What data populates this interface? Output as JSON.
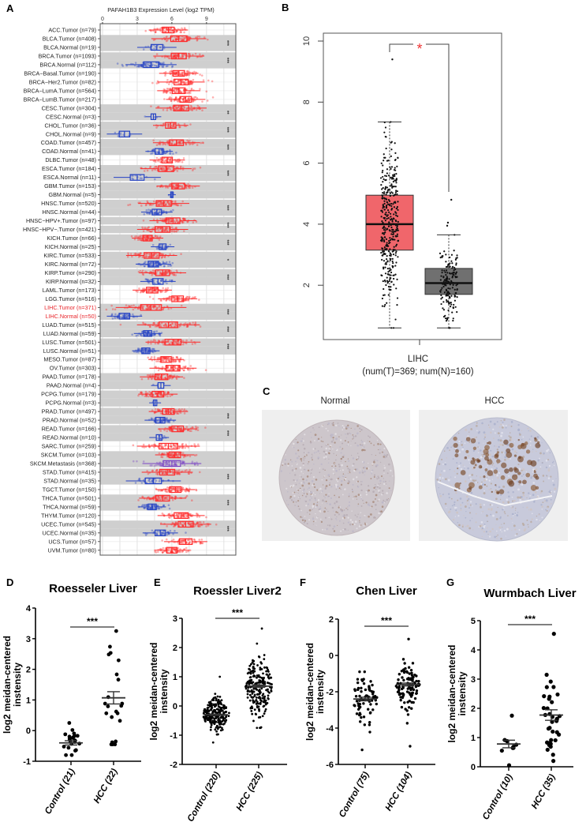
{
  "panel_letters": [
    "A",
    "B",
    "C",
    "D",
    "E",
    "F",
    "G"
  ],
  "panel_c": {
    "labels": [
      "Normal",
      "HCC"
    ]
  },
  "chart_data": [
    {
      "type": "box",
      "title": "PAFAH1B3 Expression Level (log2 TPM)",
      "x_ticks": [
        "0",
        "3",
        "6",
        "9"
      ],
      "xlim": [
        -0.2,
        11.6
      ],
      "colors": {
        "tumor": "#ff2a2a",
        "normal": "#2442c4",
        "metastasis": "#7b45c4",
        "highlight": "#e8242a",
        "band": "#cfcfcf"
      },
      "rows": [
        {
          "label": "ACC.Tumor (n=79)",
          "median": 5.7,
          "iqr": 1.0
        },
        {
          "label": "BLCA.Tumor (n=408)",
          "median": 6.6,
          "iqr": 1.4,
          "shaded": true,
          "sig": "***"
        },
        {
          "label": "BLCA.Normal (n=19)",
          "median": 4.7,
          "iqr": 1.0,
          "type": "normal",
          "shaded": true
        },
        {
          "label": "BRCA.Tumor (n=1093)",
          "median": 6.6,
          "iqr": 1.3,
          "shaded": true,
          "sig": "***"
        },
        {
          "label": "BRCA.Normal (n=112)",
          "median": 4.2,
          "iqr": 1.3,
          "type": "normal",
          "shaded": true
        },
        {
          "label": "BRCA−Basal.Tumor (n=190)",
          "median": 6.6,
          "iqr": 1.0
        },
        {
          "label": "BRCA−Her2.Tumor (n=82)",
          "median": 6.8,
          "iqr": 1.2
        },
        {
          "label": "BRCA−LumA.Tumor (n=564)",
          "median": 6.6,
          "iqr": 1.1
        },
        {
          "label": "BRCA−LumB.Tumor (n=217)",
          "median": 7.2,
          "iqr": 1.0
        },
        {
          "label": "CESC.Tumor (n=304)",
          "median": 6.8,
          "iqr": 1.3,
          "shaded": true,
          "sig": "**"
        },
        {
          "label": "CESC.Normal (n=3)",
          "median": 4.4,
          "iqr": 0.4,
          "type": "normal",
          "shaded": true
        },
        {
          "label": "CHOL.Tumor (n=36)",
          "median": 5.9,
          "iqr": 0.9,
          "shaded": true,
          "sig": "***"
        },
        {
          "label": "CHOL.Normal (n=9)",
          "median": 1.9,
          "iqr": 0.9,
          "type": "normal",
          "shaded": true
        },
        {
          "label": "COAD.Tumor (n=457)",
          "median": 6.4,
          "iqr": 1.2,
          "shaded": true,
          "sig": "***"
        },
        {
          "label": "COAD.Normal (n=41)",
          "median": 4.9,
          "iqr": 0.7,
          "type": "normal",
          "shaded": true
        },
        {
          "label": "DLBC.Tumor (n=48)",
          "median": 5.6,
          "iqr": 0.9
        },
        {
          "label": "ESCA.Tumor (n=184)",
          "median": 5.5,
          "iqr": 1.3,
          "shaded": true,
          "sig": "***"
        },
        {
          "label": "ESCA.Normal (n=11)",
          "median": 3.0,
          "iqr": 1.2,
          "type": "normal",
          "shaded": true
        },
        {
          "label": "GBM.Tumor (n=153)",
          "median": 6.55,
          "iqr": 1.1,
          "shaded": true
        },
        {
          "label": "GBM.Normal (n=5)",
          "median": 6.0,
          "iqr": 0.2,
          "type": "normal",
          "shaded": true
        },
        {
          "label": "HNSC.Tumor (n=520)",
          "median": 5.3,
          "iqr": 1.3,
          "shaded": true,
          "sig": "***"
        },
        {
          "label": "HNSC.Normal (n=44)",
          "median": 4.7,
          "iqr": 0.8,
          "type": "normal",
          "shaded": true
        },
        {
          "label": "HNSC−HPV+.Tumor (n=97)",
          "median": 6.1,
          "iqr": 1.2,
          "shaded": true,
          "sig": "***"
        },
        {
          "label": "HNSC−HPV−.Tumor (n=421)",
          "median": 5.2,
          "iqr": 1.3,
          "shaded": true
        },
        {
          "label": "KICH.Tumor (n=66)",
          "median": 3.9,
          "iqr": 0.8,
          "shaded": true,
          "sig": "***"
        },
        {
          "label": "KICH.Normal (n=25)",
          "median": 5.2,
          "iqr": 0.6,
          "type": "normal",
          "shaded": true
        },
        {
          "label": "KIRC.Tumor (n=533)",
          "median": 4.25,
          "iqr": 1.3,
          "shaded": true,
          "sig": "*"
        },
        {
          "label": "KIRC.Normal (n=72)",
          "median": 4.4,
          "iqr": 0.9,
          "type": "normal",
          "shaded": true
        },
        {
          "label": "KIRP.Tumor (n=290)",
          "median": 5.2,
          "iqr": 1.2,
          "shaded": true,
          "sig": "***"
        },
        {
          "label": "KIRP.Normal (n=32)",
          "median": 4.8,
          "iqr": 0.9,
          "type": "normal",
          "shaded": true
        },
        {
          "label": "LAML.Tumor (n=173)",
          "median": 4.3,
          "iqr": 1.0
        },
        {
          "label": "LGG.Tumor (n=516)",
          "median": 6.5,
          "iqr": 1.0
        },
        {
          "label": "LIHC.Tumor (n=371)",
          "median": 4.2,
          "iqr": 1.8,
          "shaded": true,
          "sig": "***",
          "highlight": true
        },
        {
          "label": "LIHC.Normal (n=50)",
          "median": 1.9,
          "iqr": 0.9,
          "type": "normal",
          "shaded": true,
          "highlight": true
        },
        {
          "label": "LUAD.Tumor (n=515)",
          "median": 5.7,
          "iqr": 1.6,
          "shaded": true,
          "sig": "***"
        },
        {
          "label": "LUAD.Normal (n=59)",
          "median": 3.9,
          "iqr": 0.7,
          "type": "normal",
          "shaded": true
        },
        {
          "label": "LUSC.Tumor (n=501)",
          "median": 6.1,
          "iqr": 1.4,
          "shaded": true,
          "sig": "***"
        },
        {
          "label": "LUSC.Normal (n=51)",
          "median": 3.75,
          "iqr": 0.7,
          "type": "normal",
          "shaded": true
        },
        {
          "label": "MESO.Tumor (n=87)",
          "median": 5.5,
          "iqr": 0.9
        },
        {
          "label": "OV.Tumor (n=303)",
          "median": 6.1,
          "iqr": 1.2
        },
        {
          "label": "PAAD.Tumor (n=178)",
          "median": 5.1,
          "iqr": 1.1,
          "shaded": true
        },
        {
          "label": "PAAD.Normal (n=4)",
          "median": 5.05,
          "iqr": 0.5,
          "type": "normal",
          "shaded": true
        },
        {
          "label": "PCPG.Tumor (n=179)",
          "median": 4.8,
          "iqr": 1.0,
          "shaded": true
        },
        {
          "label": "PCPG.Normal (n=3)",
          "median": 4.55,
          "iqr": 0.3,
          "type": "normal",
          "shaded": true
        },
        {
          "label": "PRAD.Tumor (n=497)",
          "median": 5.7,
          "iqr": 1.0,
          "shaded": true,
          "sig": "***"
        },
        {
          "label": "PRAD.Normal (n=52)",
          "median": 5.0,
          "iqr": 0.8,
          "type": "normal",
          "shaded": true
        },
        {
          "label": "READ.Tumor (n=166)",
          "median": 6.5,
          "iqr": 1.0,
          "shaded": true,
          "sig": "***"
        },
        {
          "label": "READ.Normal (n=10)",
          "median": 4.9,
          "iqr": 0.5,
          "type": "normal",
          "shaded": true
        },
        {
          "label": "SARC.Tumor (n=259)",
          "median": 5.7,
          "iqr": 1.6
        },
        {
          "label": "SKCM.Tumor (n=103)",
          "median": 6.25,
          "iqr": 1.0,
          "shaded": true
        },
        {
          "label": "SKCM.Metastasis (n=368)",
          "median": 6.0,
          "iqr": 1.5,
          "type": "metastasis",
          "shaded": true
        },
        {
          "label": "STAD.Tumor (n=415)",
          "median": 5.6,
          "iqr": 1.3,
          "shaded": true,
          "sig": "***"
        },
        {
          "label": "STAD.Normal (n=35)",
          "median": 4.4,
          "iqr": 1.4,
          "type": "normal",
          "shaded": true
        },
        {
          "label": "TGCT.Tumor (n=150)",
          "median": 6.3,
          "iqr": 1.0
        },
        {
          "label": "THCA.Tumor (n=501)",
          "median": 5.2,
          "iqr": 1.2,
          "shaded": true,
          "sig": "***"
        },
        {
          "label": "THCA.Normal (n=59)",
          "median": 4.3,
          "iqr": 0.7,
          "type": "normal",
          "shaded": true
        },
        {
          "label": "THYM.Tumor (n=120)",
          "median": 6.8,
          "iqr": 1.2
        },
        {
          "label": "UCEC.Tumor (n=545)",
          "median": 7.2,
          "iqr": 1.3,
          "shaded": true,
          "sig": "***"
        },
        {
          "label": "UCEC.Normal (n=35)",
          "median": 5.0,
          "iqr": 0.9,
          "type": "normal",
          "shaded": true
        },
        {
          "label": "UCS.Tumor (n=57)",
          "median": 7.2,
          "iqr": 1.1
        },
        {
          "label": "UVM.Tumor (n=80)",
          "median": 6.0,
          "iqr": 0.9
        }
      ]
    },
    {
      "type": "box",
      "category": "LIHC",
      "subtitle": "(num(T)=369; num(N)=160)",
      "y_ticks": [
        "2",
        "4",
        "6",
        "8",
        "10"
      ],
      "significance": "*",
      "groups": [
        {
          "name": "Tumor",
          "n": 369,
          "q1": 3.15,
          "median": 4.0,
          "q3": 4.95,
          "whisker_low": 0.6,
          "whisker_high": 7.35,
          "outliers": [
            9.4
          ],
          "color": "#f0666b"
        },
        {
          "name": "Normal",
          "n": 160,
          "q1": 1.7,
          "median": 2.07,
          "q3": 2.55,
          "whisker_low": 0.6,
          "whisker_high": 3.65,
          "outliers": [
            3.95,
            4.05,
            4.8
          ],
          "color": "#707070"
        }
      ]
    },
    {
      "type": "scatter",
      "title": "Roesseler Liver",
      "ylabel": [
        "log2 meidan-centered",
        "instensity"
      ],
      "y_ticks": [
        "-1",
        "0",
        "1",
        "2",
        "3",
        "4"
      ],
      "ylim": [
        -1,
        4
      ],
      "significance": "***",
      "groups": [
        {
          "label": "Control (21)",
          "n": 21,
          "mean": -0.4,
          "sem": 0.07,
          "min": -0.8,
          "max": 0.25
        },
        {
          "label": "HCC (22)",
          "n": 22,
          "mean": 1.07,
          "sem": 0.2,
          "min": -0.45,
          "max": 3.25
        }
      ]
    },
    {
      "type": "scatter",
      "title": "Roessler Liver2",
      "ylabel": [
        "log2 meidan-centered",
        "instensity"
      ],
      "y_ticks": [
        "-2",
        "-1",
        "0",
        "1",
        "2",
        "3"
      ],
      "ylim": [
        -2,
        3
      ],
      "significance": "***",
      "groups": [
        {
          "label": "Control (220)",
          "n": 220,
          "mean": -0.3,
          "sem": 0.02,
          "min": -1.25,
          "max": 1.0
        },
        {
          "label": "HCC (225)",
          "n": 225,
          "mean": 0.68,
          "sem": 0.04,
          "min": -0.75,
          "max": 2.65
        }
      ]
    },
    {
      "type": "scatter",
      "title": "Chen Liver",
      "ylabel": [
        "log2 meidan-centered",
        "instensity"
      ],
      "y_ticks": [
        "-6",
        "-4",
        "-2",
        "0",
        "2"
      ],
      "ylim": [
        -6,
        2
      ],
      "significance": "***",
      "groups": [
        {
          "label": "Control (75)",
          "n": 75,
          "mean": -2.4,
          "sem": 0.1,
          "min": -5.2,
          "max": -0.9
        },
        {
          "label": "HCC (104)",
          "n": 104,
          "mean": -1.6,
          "sem": 0.08,
          "min": -5.0,
          "max": 0.9
        }
      ]
    },
    {
      "type": "scatter",
      "title": "Wurmbach Liver",
      "ylabel": [
        "log2 meidan-centered",
        "instensity"
      ],
      "y_ticks": [
        "0",
        "1",
        "2",
        "3",
        "4",
        "5"
      ],
      "ylim": [
        0,
        5
      ],
      "significance": "***",
      "groups": [
        {
          "label": "Control (10)",
          "n": 10,
          "mean": 0.78,
          "sem": 0.13,
          "min": 0.05,
          "max": 1.75
        },
        {
          "label": "HCC (35)",
          "n": 35,
          "mean": 1.77,
          "sem": 0.18,
          "min": 0.2,
          "max": 4.55
        }
      ]
    }
  ]
}
